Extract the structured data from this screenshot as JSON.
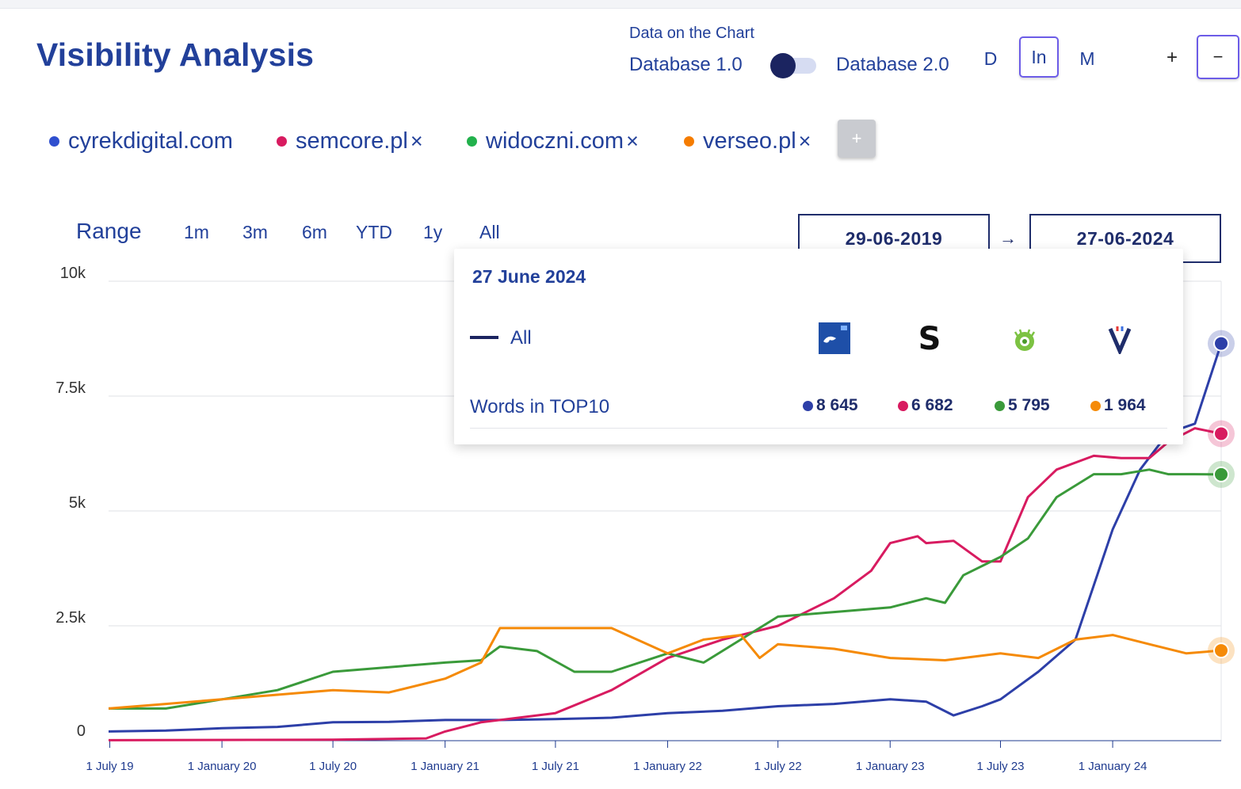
{
  "page": {
    "title": "Visibility Analysis",
    "data_caption": "Data on the Chart",
    "db1_label": "Database 1.0",
    "db2_label": "Database 2.0",
    "granularity": [
      "D",
      "In",
      "M"
    ],
    "granularity_selected": "In",
    "zoom_in": "+",
    "zoom_out": "−"
  },
  "legend": [
    {
      "name": "cyrekdigital.com",
      "color": "#2f4fcf",
      "removable": false,
      "remove": ""
    },
    {
      "name": "semcore.pl",
      "color": "#d81b60",
      "removable": true,
      "remove": "×"
    },
    {
      "name": "widoczni.com",
      "color": "#22b14c",
      "removable": true,
      "remove": "×"
    },
    {
      "name": "verseo.pl",
      "color": "#f57c00",
      "removable": true,
      "remove": "×"
    }
  ],
  "add_button": "+",
  "range": {
    "label": "Range",
    "options": [
      "1m",
      "3m",
      "6m",
      "YTD",
      "1y",
      "All"
    ],
    "from": "29-06-2019",
    "arrow": "→",
    "to": "27-06-2024"
  },
  "tooltip": {
    "date": "27 June 2024",
    "all_label": "All",
    "metric_label": "Words in TOP10",
    "values": [
      "8 645",
      "6 682",
      "5 795",
      "1 964"
    ],
    "icons": [
      "cyrek-logo-icon",
      "semcore-s-logo-icon",
      "widoczni-logo-icon",
      "verseo-v-logo-icon"
    ]
  },
  "chart_data": {
    "type": "line",
    "title": "",
    "xlabel": "",
    "ylabel": "",
    "ylim": [
      0,
      10000
    ],
    "y_ticks": [
      "10k",
      "7.5k",
      "5k",
      "2.5k",
      "0"
    ],
    "x_ticks": [
      "1 July 19",
      "1 January 20",
      "1 July 20",
      "1 January 21",
      "1 July 21",
      "1 January 22",
      "1 July 22",
      "1 January 23",
      "1 July 23",
      "1 January 24"
    ],
    "x_range": [
      "2019-06-29",
      "2024-06-27"
    ],
    "grid": true,
    "series": [
      {
        "name": "cyrekdigital.com",
        "color": "#2d3fa8",
        "x": [
          "2019-06-29",
          "2019-10-01",
          "2020-01-01",
          "2020-04-01",
          "2020-07-01",
          "2020-10-01",
          "2021-01-01",
          "2021-04-01",
          "2021-07-01",
          "2021-10-01",
          "2022-01-01",
          "2022-04-01",
          "2022-07-01",
          "2022-10-01",
          "2023-01-01",
          "2023-03-01",
          "2023-04-15",
          "2023-06-01",
          "2023-07-01",
          "2023-09-01",
          "2023-11-01",
          "2024-01-01",
          "2024-02-15",
          "2024-04-01",
          "2024-05-15",
          "2024-06-27"
        ],
        "values": [
          200,
          220,
          270,
          300,
          400,
          410,
          450,
          450,
          470,
          500,
          600,
          650,
          750,
          800,
          900,
          850,
          550,
          750,
          900,
          1500,
          2200,
          4600,
          5900,
          6700,
          6900,
          8645
        ]
      },
      {
        "name": "semcore.pl",
        "color": "#d81b60",
        "x": [
          "2019-06-29",
          "2020-07-01",
          "2020-12-01",
          "2021-01-01",
          "2021-03-01",
          "2021-07-01",
          "2021-10-01",
          "2022-01-01",
          "2022-04-01",
          "2022-07-01",
          "2022-10-01",
          "2022-12-01",
          "2023-01-01",
          "2023-02-15",
          "2023-03-01",
          "2023-04-15",
          "2023-06-01",
          "2023-07-01",
          "2023-08-15",
          "2023-10-01",
          "2023-12-01",
          "2024-01-15",
          "2024-03-01",
          "2024-04-01",
          "2024-05-15",
          "2024-06-27"
        ],
        "values": [
          10,
          20,
          50,
          200,
          400,
          600,
          1100,
          1800,
          2200,
          2500,
          3100,
          3700,
          4300,
          4450,
          4300,
          4350,
          3900,
          3900,
          5300,
          5900,
          6200,
          6150,
          6150,
          6500,
          6800,
          6682
        ]
      },
      {
        "name": "widoczni.com",
        "color": "#3a9a3a",
        "x": [
          "2019-06-29",
          "2019-10-01",
          "2020-01-01",
          "2020-04-01",
          "2020-07-01",
          "2020-10-01",
          "2021-01-01",
          "2021-03-01",
          "2021-04-01",
          "2021-06-01",
          "2021-08-01",
          "2021-10-01",
          "2022-01-01",
          "2022-03-01",
          "2022-05-01",
          "2022-07-01",
          "2022-10-01",
          "2023-01-01",
          "2023-03-01",
          "2023-04-01",
          "2023-05-01",
          "2023-07-01",
          "2023-08-15",
          "2023-10-01",
          "2023-12-01",
          "2024-01-15",
          "2024-03-01",
          "2024-04-01",
          "2024-05-15",
          "2024-06-27"
        ],
        "values": [
          700,
          700,
          900,
          1100,
          1500,
          1600,
          1700,
          1750,
          2050,
          1950,
          1500,
          1500,
          1900,
          1700,
          2200,
          2700,
          2800,
          2900,
          3100,
          3000,
          3600,
          4000,
          4400,
          5300,
          5800,
          5800,
          5900,
          5800,
          5800,
          5795
        ]
      },
      {
        "name": "verseo.pl",
        "color": "#f58a07",
        "x": [
          "2019-06-29",
          "2019-10-01",
          "2020-01-01",
          "2020-04-01",
          "2020-07-01",
          "2020-10-01",
          "2021-01-01",
          "2021-03-01",
          "2021-04-01",
          "2021-07-01",
          "2021-10-01",
          "2022-01-01",
          "2022-03-01",
          "2022-05-01",
          "2022-06-01",
          "2022-07-01",
          "2022-10-01",
          "2023-01-01",
          "2023-04-01",
          "2023-07-01",
          "2023-09-01",
          "2023-11-01",
          "2024-01-01",
          "2024-03-01",
          "2024-05-01",
          "2024-06-27"
        ],
        "values": [
          700,
          800,
          900,
          1000,
          1100,
          1050,
          1350,
          1700,
          2450,
          2450,
          2450,
          1900,
          2200,
          2300,
          1800,
          2100,
          2000,
          1800,
          1750,
          1900,
          1800,
          2200,
          2300,
          2100,
          1900,
          1964
        ]
      }
    ]
  }
}
